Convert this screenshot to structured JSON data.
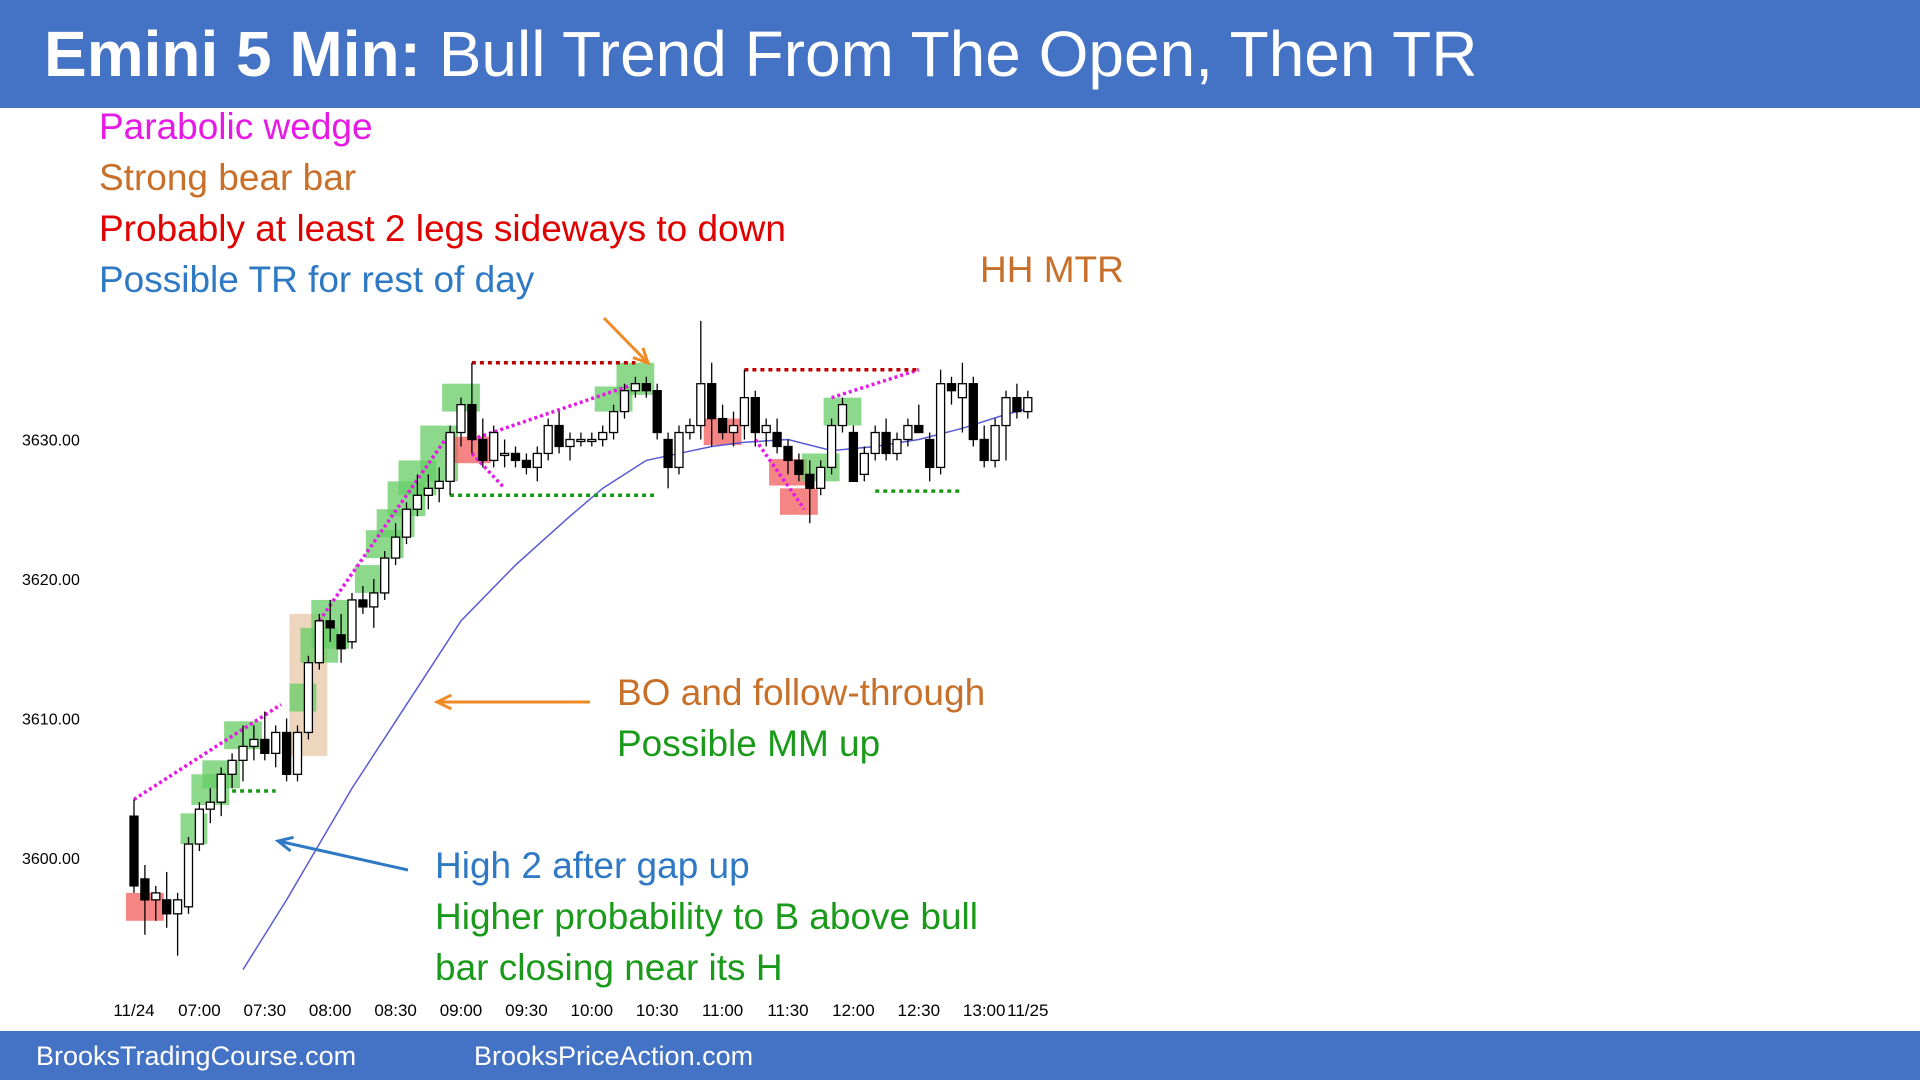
{
  "title": {
    "bold": "Emini 5 Min:",
    "rest": " Bull Trend From The Open, Then TR"
  },
  "footer": {
    "left": "BrooksTradingCourse.com",
    "right": "BrooksPriceAction.com"
  },
  "notes": {
    "n1": {
      "text": "Parabolic wedge",
      "color": "#e619e6"
    },
    "n2": {
      "text": "Strong bear bar",
      "color": "#c8702a"
    },
    "n3": {
      "text": "Probably at least 2 legs sideways to down",
      "color": "#e00000"
    },
    "n4": {
      "text": "Possible TR for rest of day",
      "color": "#2f79c4"
    },
    "hh": {
      "text": "HH MTR",
      "color": "#c8702a"
    },
    "bo1": {
      "text": "BO and follow-through",
      "color": "#c8702a"
    },
    "bo2": {
      "text": "Possible MM up",
      "color": "#1a9a1a"
    },
    "h1": {
      "text": "High 2 after gap up",
      "color": "#2f79c4"
    },
    "h2": {
      "text": "Higher probability to B above bull",
      "color": "#1a9a1a"
    },
    "h3": {
      "text": "bar closing near its H",
      "color": "#1a9a1a"
    }
  },
  "chart_data": {
    "type": "candlestick",
    "title": "Emini 5 Min: Bull Trend From The Open, Then TR",
    "y_ticks": [
      3600,
      3610,
      3620,
      3630
    ],
    "y_tick_labels": [
      "3600.00",
      "3610.00",
      "3620.00",
      "3630.00"
    ],
    "x_tick_labels": [
      {
        "i": 0,
        "label": "11/24"
      },
      {
        "i": 6,
        "label": "07:00"
      },
      {
        "i": 12,
        "label": "07:30"
      },
      {
        "i": 18,
        "label": "08:00"
      },
      {
        "i": 24,
        "label": "08:30"
      },
      {
        "i": 30,
        "label": "09:00"
      },
      {
        "i": 36,
        "label": "09:30"
      },
      {
        "i": 42,
        "label": "10:00"
      },
      {
        "i": 48,
        "label": "10:30"
      },
      {
        "i": 54,
        "label": "11:00"
      },
      {
        "i": 60,
        "label": "11:30"
      },
      {
        "i": 66,
        "label": "12:00"
      },
      {
        "i": 72,
        "label": "12:30"
      },
      {
        "i": 78,
        "label": "13:00"
      },
      {
        "i": 82,
        "label": "11/25"
      }
    ],
    "ylim": [
      3592,
      3637
    ],
    "candles": [
      [
        3603.0,
        3604.2,
        3597.5,
        3598.0
      ],
      [
        3598.5,
        3599.5,
        3594.5,
        3597.0
      ],
      [
        3597.0,
        3598.0,
        3595.5,
        3597.5
      ],
      [
        3597.0,
        3599.0,
        3595.0,
        3596.0
      ],
      [
        3596.0,
        3597.5,
        3593.0,
        3597.0
      ],
      [
        3596.5,
        3601.5,
        3596.0,
        3601.0
      ],
      [
        3601.0,
        3604.0,
        3600.5,
        3603.5
      ],
      [
        3603.5,
        3605.0,
        3602.5,
        3604.0
      ],
      [
        3604.0,
        3606.5,
        3603.0,
        3606.0
      ],
      [
        3606.0,
        3607.5,
        3605.0,
        3607.0
      ],
      [
        3607.0,
        3609.5,
        3605.5,
        3608.0
      ],
      [
        3608.0,
        3609.5,
        3607.0,
        3608.5
      ],
      [
        3608.5,
        3610.5,
        3607.0,
        3607.5
      ],
      [
        3607.5,
        3609.5,
        3606.5,
        3609.0
      ],
      [
        3609.0,
        3610.0,
        3605.5,
        3606.0
      ],
      [
        3606.0,
        3609.5,
        3605.5,
        3609.0
      ],
      [
        3609.0,
        3614.5,
        3608.5,
        3614.0
      ],
      [
        3614.0,
        3617.5,
        3613.5,
        3617.0
      ],
      [
        3617.0,
        3618.5,
        3615.5,
        3616.5
      ],
      [
        3616.0,
        3617.5,
        3614.0,
        3615.0
      ],
      [
        3615.5,
        3619.0,
        3615.0,
        3618.5
      ],
      [
        3618.5,
        3619.5,
        3617.5,
        3618.0
      ],
      [
        3618.0,
        3620.0,
        3616.5,
        3619.0
      ],
      [
        3619.0,
        3622.0,
        3618.5,
        3621.5
      ],
      [
        3621.5,
        3624.0,
        3621.0,
        3623.0
      ],
      [
        3623.0,
        3625.5,
        3622.5,
        3625.0
      ],
      [
        3625.0,
        3627.5,
        3624.5,
        3626.0
      ],
      [
        3626.0,
        3627.5,
        3625.0,
        3626.5
      ],
      [
        3626.5,
        3628.0,
        3625.5,
        3627.0
      ],
      [
        3627.0,
        3631.0,
        3626.0,
        3630.5
      ],
      [
        3630.5,
        3633.0,
        3629.5,
        3632.5
      ],
      [
        3632.5,
        3635.5,
        3629.0,
        3630.0
      ],
      [
        3630.0,
        3631.5,
        3628.0,
        3628.5
      ],
      [
        3628.5,
        3631.0,
        3628.0,
        3630.5
      ],
      [
        3629.0,
        3630.0,
        3628.0,
        3629.0
      ],
      [
        3629.0,
        3629.5,
        3628.0,
        3628.5
      ],
      [
        3628.5,
        3629.0,
        3627.5,
        3628.0
      ],
      [
        3628.0,
        3629.5,
        3627.0,
        3629.0
      ],
      [
        3629.0,
        3631.5,
        3628.5,
        3631.0
      ],
      [
        3631.0,
        3632.0,
        3629.0,
        3629.5
      ],
      [
        3629.5,
        3630.5,
        3628.5,
        3630.0
      ],
      [
        3630.0,
        3630.5,
        3629.5,
        3630.0
      ],
      [
        3630.0,
        3630.5,
        3629.5,
        3630.0
      ],
      [
        3630.0,
        3631.0,
        3629.5,
        3630.5
      ],
      [
        3630.5,
        3632.5,
        3630.0,
        3632.0
      ],
      [
        3632.0,
        3634.0,
        3631.5,
        3633.5
      ],
      [
        3633.5,
        3634.5,
        3633.0,
        3634.0
      ],
      [
        3634.0,
        3634.5,
        3633.0,
        3633.5
      ],
      [
        3633.5,
        3634.0,
        3630.0,
        3630.5
      ],
      [
        3630.0,
        3630.5,
        3626.5,
        3628.0
      ],
      [
        3628.0,
        3631.0,
        3627.5,
        3630.5
      ],
      [
        3630.5,
        3631.5,
        3630.0,
        3631.0
      ],
      [
        3631.0,
        3638.5,
        3630.0,
        3634.0
      ],
      [
        3634.0,
        3635.5,
        3629.5,
        3631.5
      ],
      [
        3631.5,
        3632.5,
        3630.0,
        3630.5
      ],
      [
        3630.5,
        3632.0,
        3629.5,
        3631.0
      ],
      [
        3631.0,
        3635.0,
        3630.0,
        3633.0
      ],
      [
        3633.0,
        3633.5,
        3629.5,
        3630.5
      ],
      [
        3630.5,
        3631.5,
        3629.5,
        3631.0
      ],
      [
        3630.5,
        3631.5,
        3629.0,
        3629.5
      ],
      [
        3629.5,
        3630.0,
        3627.5,
        3628.5
      ],
      [
        3628.5,
        3629.0,
        3627.0,
        3627.5
      ],
      [
        3627.5,
        3628.5,
        3624.0,
        3626.5
      ],
      [
        3626.5,
        3628.5,
        3626.0,
        3628.0
      ],
      [
        3628.0,
        3631.5,
        3627.5,
        3631.0
      ],
      [
        3631.0,
        3633.0,
        3630.5,
        3632.5
      ],
      [
        3630.5,
        3631.0,
        3627.0,
        3627.0
      ],
      [
        3627.5,
        3629.5,
        3627.0,
        3629.0
      ],
      [
        3629.0,
        3631.0,
        3628.5,
        3630.5
      ],
      [
        3630.5,
        3631.5,
        3628.5,
        3629.0
      ],
      [
        3629.0,
        3630.5,
        3628.5,
        3630.0
      ],
      [
        3630.0,
        3631.5,
        3629.5,
        3631.0
      ],
      [
        3631.0,
        3632.5,
        3630.5,
        3630.5
      ],
      [
        3630.0,
        3630.5,
        3627.0,
        3628.0
      ],
      [
        3628.0,
        3635.0,
        3627.5,
        3634.0
      ],
      [
        3634.0,
        3634.5,
        3632.5,
        3633.5
      ],
      [
        3633.0,
        3635.5,
        3630.5,
        3634.0
      ],
      [
        3634.0,
        3634.5,
        3629.5,
        3630.0
      ],
      [
        3630.0,
        3631.0,
        3628.0,
        3628.5
      ],
      [
        3628.5,
        3631.5,
        3628.0,
        3631.0
      ],
      [
        3631.0,
        3633.5,
        3628.5,
        3633.0
      ],
      [
        3633.0,
        3634.0,
        3631.5,
        3632.0
      ],
      [
        3632.0,
        3633.5,
        3631.5,
        3633.0
      ]
    ],
    "ema": [
      {
        "i": 10,
        "v": 3592
      },
      {
        "i": 14,
        "v": 3597
      },
      {
        "i": 17,
        "v": 3601
      },
      {
        "i": 20,
        "v": 3605
      },
      {
        "i": 25,
        "v": 3611
      },
      {
        "i": 30,
        "v": 3617
      },
      {
        "i": 35,
        "v": 3621
      },
      {
        "i": 40,
        "v": 3624.5
      },
      {
        "i": 43,
        "v": 3626.5
      },
      {
        "i": 45,
        "v": 3627.5
      },
      {
        "i": 47,
        "v": 3628.5
      },
      {
        "i": 50,
        "v": 3629
      },
      {
        "i": 53,
        "v": 3629.5
      },
      {
        "i": 56,
        "v": 3629.8
      },
      {
        "i": 60,
        "v": 3630
      },
      {
        "i": 64,
        "v": 3629.2
      },
      {
        "i": 68,
        "v": 3629.5
      },
      {
        "i": 72,
        "v": 3630
      },
      {
        "i": 76,
        "v": 3630.8
      },
      {
        "i": 80,
        "v": 3631.8
      },
      {
        "i": 82,
        "v": 3632.2
      }
    ],
    "highlights": [
      {
        "i0": 0,
        "i1": 2,
        "lo": 3595.5,
        "hi": 3597.5,
        "color": "#f25c5c"
      },
      {
        "i0": 5,
        "i1": 6,
        "lo": 3601,
        "hi": 3603.2,
        "color": "#66cc66"
      },
      {
        "i0": 6,
        "i1": 8,
        "lo": 3603.8,
        "hi": 3606,
        "color": "#66cc66"
      },
      {
        "i0": 7,
        "i1": 9,
        "lo": 3605,
        "hi": 3607,
        "color": "#66cc66"
      },
      {
        "i0": 9,
        "i1": 11,
        "lo": 3607.8,
        "hi": 3609.8,
        "color": "#66cc66"
      },
      {
        "i0": 15,
        "i1": 17,
        "lo": 3607.3,
        "hi": 3617.5,
        "color": "#e8c8a8"
      },
      {
        "i0": 15,
        "i1": 16,
        "lo": 3610.5,
        "hi": 3612.5,
        "color": "#66cc66"
      },
      {
        "i0": 16,
        "i1": 18,
        "lo": 3614,
        "hi": 3616.5,
        "color": "#66cc66"
      },
      {
        "i0": 17,
        "i1": 19,
        "lo": 3615,
        "hi": 3618.5,
        "color": "#66cc66"
      },
      {
        "i0": 21,
        "i1": 22,
        "lo": 3619,
        "hi": 3621,
        "color": "#66cc66"
      },
      {
        "i0": 22,
        "i1": 24,
        "lo": 3621.5,
        "hi": 3623.5,
        "color": "#66cc66"
      },
      {
        "i0": 23,
        "i1": 25,
        "lo": 3623,
        "hi": 3625,
        "color": "#66cc66"
      },
      {
        "i0": 24,
        "i1": 26,
        "lo": 3624.5,
        "hi": 3627,
        "color": "#66cc66"
      },
      {
        "i0": 25,
        "i1": 27,
        "lo": 3626,
        "hi": 3628.5,
        "color": "#66cc66"
      },
      {
        "i0": 27,
        "i1": 29,
        "lo": 3627,
        "hi": 3631,
        "color": "#66cc66"
      },
      {
        "i0": 29,
        "i1": 31,
        "lo": 3632,
        "hi": 3634,
        "color": "#66cc66"
      },
      {
        "i0": 30,
        "i1": 32,
        "lo": 3628.3,
        "hi": 3630.2,
        "color": "#f25c5c"
      },
      {
        "i0": 43,
        "i1": 45,
        "lo": 3632,
        "hi": 3633.8,
        "color": "#66cc66"
      },
      {
        "i0": 45,
        "i1": 47,
        "lo": 3633.2,
        "hi": 3635.5,
        "color": "#66cc66"
      },
      {
        "i0": 53,
        "i1": 55,
        "lo": 3629.6,
        "hi": 3631.5,
        "color": "#f25c5c"
      },
      {
        "i0": 59,
        "i1": 61,
        "lo": 3626.7,
        "hi": 3628.6,
        "color": "#f25c5c"
      },
      {
        "i0": 60,
        "i1": 62,
        "lo": 3624.6,
        "hi": 3626.5,
        "color": "#f25c5c"
      },
      {
        "i0": 62,
        "i1": 64,
        "lo": 3627,
        "hi": 3629,
        "color": "#66cc66"
      },
      {
        "i0": 64,
        "i1": 66,
        "lo": 3631,
        "hi": 3633,
        "color": "#66cc66"
      }
    ],
    "lines": [
      {
        "i0": 0,
        "v0": 3604.2,
        "i1": 13.5,
        "v1": 3611,
        "color": "#e619e6",
        "dash": "3,3"
      },
      {
        "i0": 17,
        "v0": 3617,
        "i1": 29,
        "v1": 3630.5,
        "color": "#e619e6",
        "dash": "3,3"
      },
      {
        "i0": 31,
        "v0": 3630,
        "i1": 46,
        "v1": 3634,
        "color": "#e619e6",
        "dash": "3,3"
      },
      {
        "i0": 31,
        "v0": 3629,
        "i1": 34,
        "v1": 3626.5,
        "color": "#e619e6",
        "dash": "3,3"
      },
      {
        "i0": 57,
        "v0": 3630,
        "i1": 61.5,
        "v1": 3625,
        "color": "#e619e6",
        "dash": "3,3"
      },
      {
        "i0": 64,
        "v0": 3633,
        "i1": 72,
        "v1": 3635,
        "color": "#e619e6",
        "dash": "3,3"
      },
      {
        "i0": 31,
        "v0": 3635.5,
        "i1": 46,
        "v1": 3635.5,
        "color": "#c00000",
        "dash": "4,4"
      },
      {
        "i0": 56,
        "v0": 3635,
        "i1": 72,
        "v1": 3635,
        "color": "#c00000",
        "dash": "4,4"
      },
      {
        "i0": 29,
        "v0": 3626,
        "i1": 48,
        "v1": 3626,
        "color": "#1a9a1a",
        "dash": "4,4"
      },
      {
        "i0": 9,
        "v0": 3604.8,
        "i1": 13,
        "v1": 3604.8,
        "color": "#1a9a1a",
        "dash": "4,4"
      },
      {
        "i0": 68,
        "v0": 3626.3,
        "i1": 76,
        "v1": 3626.3,
        "color": "#1a9a1a",
        "dash": "4,4"
      }
    ]
  }
}
